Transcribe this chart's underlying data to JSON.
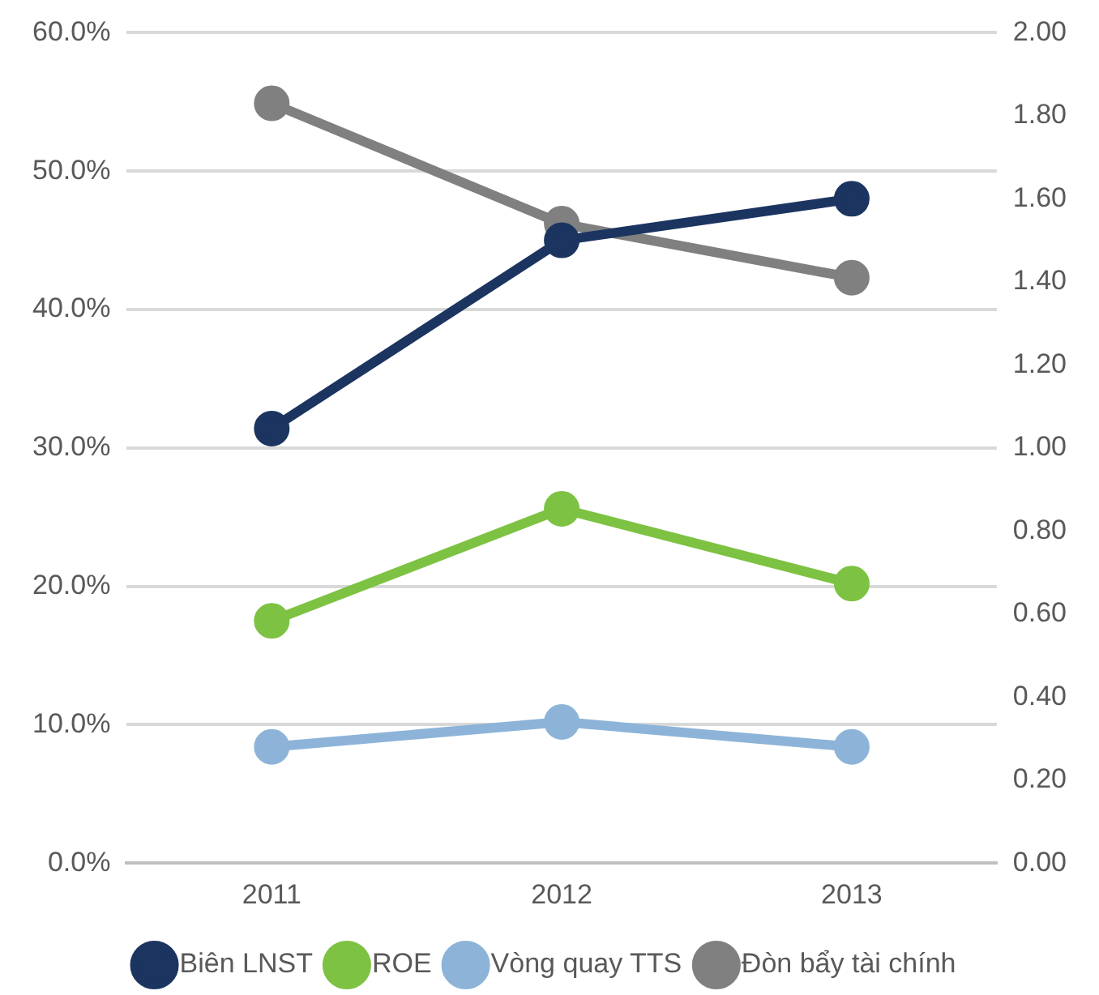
{
  "chart_data": {
    "type": "line",
    "categories": [
      "2011",
      "2012",
      "2013"
    ],
    "series": [
      {
        "name": "Biên LNST",
        "color": "#1b3560",
        "values": [
          31.4,
          45.0,
          48.0
        ]
      },
      {
        "name": "ROE",
        "color": "#7dc242",
        "values": [
          17.5,
          25.6,
          20.2
        ]
      },
      {
        "name": "Vòng quay TTS",
        "color": "#8db4d8",
        "values": [
          0.28,
          0.34,
          0.28
        ],
        "axis": "y2"
      },
      {
        "name": "Đòn bẩy tài chính",
        "color": "#808080",
        "values": [
          1.83,
          1.54,
          1.41
        ],
        "axis": "y2"
      }
    ],
    "ylim": [
      0,
      60
    ],
    "yticks": [
      {
        "value": 0,
        "label": "0.0%"
      },
      {
        "value": 10,
        "label": "10.0%"
      },
      {
        "value": 20,
        "label": "20.0%"
      },
      {
        "value": 30,
        "label": "30.0%"
      },
      {
        "value": 40,
        "label": "40.0%"
      },
      {
        "value": 50,
        "label": "50.0%"
      },
      {
        "value": 60,
        "label": "60.0%"
      }
    ],
    "y2lim": [
      0,
      2
    ],
    "y2ticks": [
      {
        "value": 0,
        "label": "0.00"
      },
      {
        "value": 0.2,
        "label": "0.20"
      },
      {
        "value": 0.4,
        "label": "0.40"
      },
      {
        "value": 0.6,
        "label": "0.60"
      },
      {
        "value": 0.8,
        "label": "0.80"
      },
      {
        "value": 1,
        "label": "1.00"
      },
      {
        "value": 1.2,
        "label": "1.20"
      },
      {
        "value": 1.4,
        "label": "1.40"
      },
      {
        "value": 1.6,
        "label": "1.60"
      },
      {
        "value": 1.8,
        "label": "1.80"
      },
      {
        "value": 2,
        "label": "2.00"
      }
    ],
    "grid": "y",
    "legend": "bottom",
    "marker": "circle",
    "line_style": "solid"
  }
}
